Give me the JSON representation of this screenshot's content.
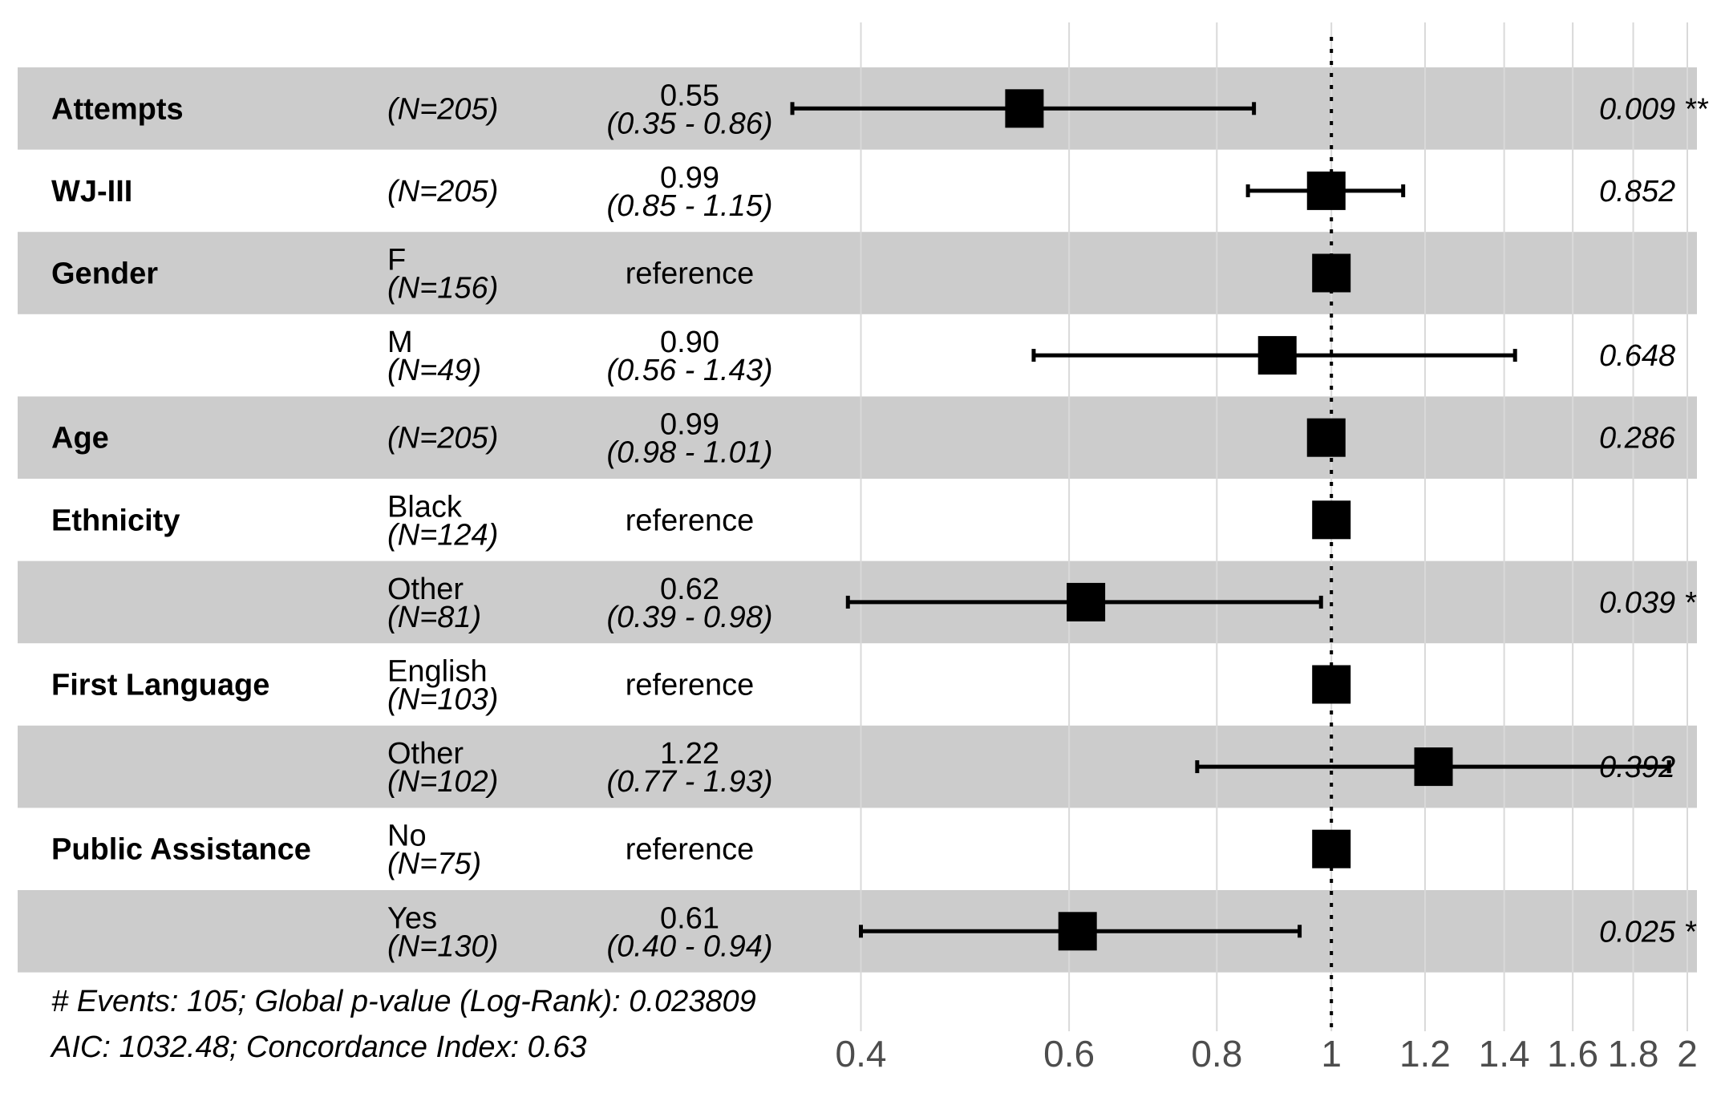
{
  "chart_data": {
    "type": "forest",
    "x_scale": "log",
    "xlim": [
      0.35,
      2.0
    ],
    "reference_line": 1,
    "x_ticks": [
      {
        "value": 0.4,
        "label": "0.4"
      },
      {
        "value": 0.6,
        "label": "0.6"
      },
      {
        "value": 0.8,
        "label": "0.8"
      },
      {
        "value": 1.0,
        "label": "1"
      },
      {
        "value": 1.2,
        "label": "1.2"
      },
      {
        "value": 1.4,
        "label": "1.4"
      },
      {
        "value": 1.6,
        "label": "1.6"
      },
      {
        "value": 1.8,
        "label": "1.8"
      },
      {
        "value": 2.0,
        "label": "2"
      }
    ],
    "rows": [
      {
        "variable": "Attempts",
        "level": "",
        "n": "(N=205)",
        "estimate": 0.55,
        "lower": 0.35,
        "upper": 0.86,
        "est_text": "0.55",
        "ci_text": "(0.35 - 0.86)",
        "p_text": "0.009 **",
        "shaded": true
      },
      {
        "variable": "WJ-III",
        "level": "",
        "n": "(N=205)",
        "estimate": 0.99,
        "lower": 0.85,
        "upper": 1.15,
        "est_text": "0.99",
        "ci_text": "(0.85 - 1.15)",
        "p_text": "0.852",
        "shaded": false
      },
      {
        "variable": "Gender",
        "level": "F",
        "n": "(N=156)",
        "estimate": 1.0,
        "lower": null,
        "upper": null,
        "est_text": "reference",
        "ci_text": "",
        "p_text": "",
        "shaded": true
      },
      {
        "variable": "",
        "level": "M",
        "n": "(N=49)",
        "estimate": 0.9,
        "lower": 0.56,
        "upper": 1.43,
        "est_text": "0.90",
        "ci_text": "(0.56 - 1.43)",
        "p_text": "0.648",
        "shaded": false
      },
      {
        "variable": "Age",
        "level": "",
        "n": "(N=205)",
        "estimate": 0.99,
        "lower": 0.98,
        "upper": 1.01,
        "est_text": "0.99",
        "ci_text": "(0.98 - 1.01)",
        "p_text": "0.286",
        "shaded": true
      },
      {
        "variable": "Ethnicity",
        "level": "Black",
        "n": "(N=124)",
        "estimate": 1.0,
        "lower": null,
        "upper": null,
        "est_text": "reference",
        "ci_text": "",
        "p_text": "",
        "shaded": false
      },
      {
        "variable": "",
        "level": "Other",
        "n": "(N=81)",
        "estimate": 0.62,
        "lower": 0.39,
        "upper": 0.98,
        "est_text": "0.62",
        "ci_text": "(0.39 - 0.98)",
        "p_text": "0.039 *",
        "shaded": true
      },
      {
        "variable": "First Language",
        "level": "English",
        "n": "(N=103)",
        "estimate": 1.0,
        "lower": null,
        "upper": null,
        "est_text": "reference",
        "ci_text": "",
        "p_text": "",
        "shaded": false
      },
      {
        "variable": "",
        "level": "Other",
        "n": "(N=102)",
        "estimate": 1.22,
        "lower": 0.77,
        "upper": 1.93,
        "est_text": "1.22",
        "ci_text": "(0.77 - 1.93)",
        "p_text": "0.392",
        "shaded": true
      },
      {
        "variable": "Public Assistance",
        "level": "No",
        "n": "(N=75)",
        "estimate": 1.0,
        "lower": null,
        "upper": null,
        "est_text": "reference",
        "ci_text": "",
        "p_text": "",
        "shaded": false
      },
      {
        "variable": "",
        "level": "Yes",
        "n": "(N=130)",
        "estimate": 0.61,
        "lower": 0.4,
        "upper": 0.94,
        "est_text": "0.61",
        "ci_text": "(0.40 - 0.94)",
        "p_text": "0.025 *",
        "shaded": true
      }
    ],
    "footnotes": [
      "# Events: 105; Global p-value (Log-Rank): 0.023809",
      "AIC: 1032.48; Concordance Index: 0.63"
    ],
    "colors": {
      "shade": "#cccccc",
      "gridline": "#d9d9d9",
      "marker": "#000000",
      "tick_text": "#4d4d4d"
    }
  }
}
